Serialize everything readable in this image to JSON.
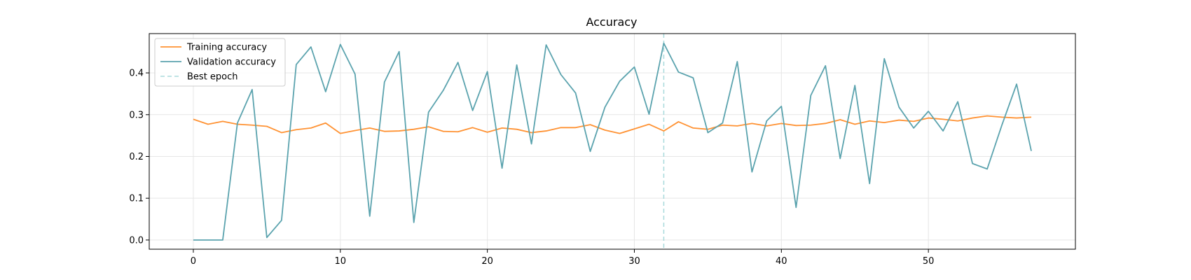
{
  "chart_data": {
    "type": "line",
    "title": "Accuracy",
    "xlabel": "",
    "ylabel": "",
    "xlim": [
      -3,
      60
    ],
    "ylim": [
      -0.022,
      0.494
    ],
    "xticks": [
      0,
      10,
      20,
      30,
      40,
      50
    ],
    "yticks": [
      0.0,
      0.1,
      0.2,
      0.3,
      0.4
    ],
    "ytick_labels": [
      "0.0",
      "0.1",
      "0.2",
      "0.3",
      "0.4"
    ],
    "grid": true,
    "legend_position": "top-left",
    "series": [
      {
        "name": "Training accuracy",
        "color": "#ff9233",
        "x": [
          0,
          1,
          2,
          3,
          4,
          5,
          6,
          7,
          8,
          9,
          10,
          11,
          12,
          13,
          14,
          15,
          16,
          17,
          18,
          19,
          20,
          21,
          22,
          23,
          24,
          25,
          26,
          27,
          28,
          29,
          30,
          31,
          32,
          33,
          34,
          35,
          36,
          37,
          38,
          39,
          40,
          41,
          42,
          43,
          44,
          45,
          46,
          47,
          48,
          49,
          50,
          51,
          52,
          53,
          54,
          55,
          56,
          57
        ],
        "y": [
          0.289,
          0.277,
          0.284,
          0.277,
          0.275,
          0.272,
          0.257,
          0.264,
          0.268,
          0.28,
          0.255,
          0.262,
          0.268,
          0.26,
          0.261,
          0.265,
          0.271,
          0.26,
          0.259,
          0.269,
          0.258,
          0.268,
          0.265,
          0.257,
          0.261,
          0.269,
          0.269,
          0.276,
          0.263,
          0.255,
          0.266,
          0.277,
          0.261,
          0.283,
          0.268,
          0.265,
          0.275,
          0.273,
          0.279,
          0.273,
          0.279,
          0.274,
          0.275,
          0.279,
          0.288,
          0.277,
          0.285,
          0.281,
          0.287,
          0.284,
          0.292,
          0.289,
          0.285,
          0.292,
          0.297,
          0.294,
          0.292,
          0.294
        ]
      },
      {
        "name": "Validation accuracy",
        "color": "#5ba3ae",
        "x": [
          0,
          1,
          2,
          3,
          4,
          5,
          6,
          7,
          8,
          9,
          10,
          11,
          12,
          13,
          14,
          15,
          16,
          17,
          18,
          19,
          20,
          21,
          22,
          23,
          24,
          25,
          26,
          27,
          28,
          29,
          30,
          31,
          32,
          33,
          34,
          35,
          36,
          37,
          38,
          39,
          40,
          41,
          42,
          43,
          44,
          45,
          46,
          47,
          48,
          49,
          50,
          51,
          52,
          53,
          54,
          55,
          56,
          57
        ],
        "y": [
          0.0,
          0.0,
          0.0,
          0.28,
          0.36,
          0.006,
          0.047,
          0.42,
          0.462,
          0.355,
          0.468,
          0.397,
          0.057,
          0.378,
          0.451,
          0.042,
          0.306,
          0.358,
          0.425,
          0.31,
          0.403,
          0.172,
          0.419,
          0.23,
          0.467,
          0.396,
          0.352,
          0.212,
          0.318,
          0.38,
          0.414,
          0.301,
          0.471,
          0.402,
          0.388,
          0.257,
          0.28,
          0.427,
          0.163,
          0.285,
          0.32,
          0.078,
          0.346,
          0.417,
          0.195,
          0.37,
          0.135,
          0.434,
          0.318,
          0.268,
          0.308,
          0.261,
          0.331,
          0.183,
          0.17,
          0.275,
          0.373,
          0.213
        ]
      }
    ],
    "best_epoch": {
      "label": "Best epoch",
      "x": 32,
      "color": "#a8dadc"
    }
  }
}
